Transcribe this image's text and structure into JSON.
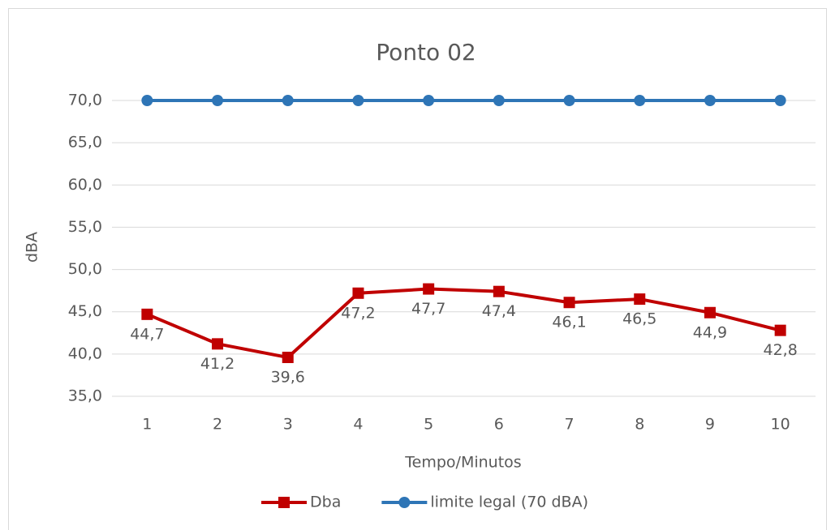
{
  "chart_data": {
    "type": "line",
    "title": "Ponto 02",
    "x_label": "Tempo/Minutos",
    "y_label": "dBA",
    "categories": [
      "1",
      "2",
      "3",
      "4",
      "5",
      "6",
      "7",
      "8",
      "9",
      "10"
    ],
    "series": [
      {
        "name": "Dba",
        "color": "#c00000",
        "marker": "square",
        "values": [
          44.7,
          41.2,
          39.6,
          47.2,
          47.7,
          47.4,
          46.1,
          46.5,
          44.9,
          42.8
        ],
        "value_labels": [
          "44,7",
          "41,2",
          "39,6",
          "47,2",
          "47,7",
          "47,4",
          "46,1",
          "46,5",
          "44,9",
          "42,8"
        ]
      },
      {
        "name": "limite legal (70 dBA)",
        "color": "#2e75b6",
        "marker": "circle",
        "values": [
          70,
          70,
          70,
          70,
          70,
          70,
          70,
          70,
          70,
          70
        ]
      }
    ],
    "ylim": [
      35,
      70
    ],
    "yticks": [
      {
        "value": 35,
        "label": "35,0"
      },
      {
        "value": 40,
        "label": "40,0"
      },
      {
        "value": 45,
        "label": "45,0"
      },
      {
        "value": 50,
        "label": "50,0"
      },
      {
        "value": 55,
        "label": "55,0"
      },
      {
        "value": 60,
        "label": "60,0"
      },
      {
        "value": 65,
        "label": "65,0"
      },
      {
        "value": 70,
        "label": "70,0"
      }
    ],
    "grid": true,
    "legend": "bottom"
  }
}
